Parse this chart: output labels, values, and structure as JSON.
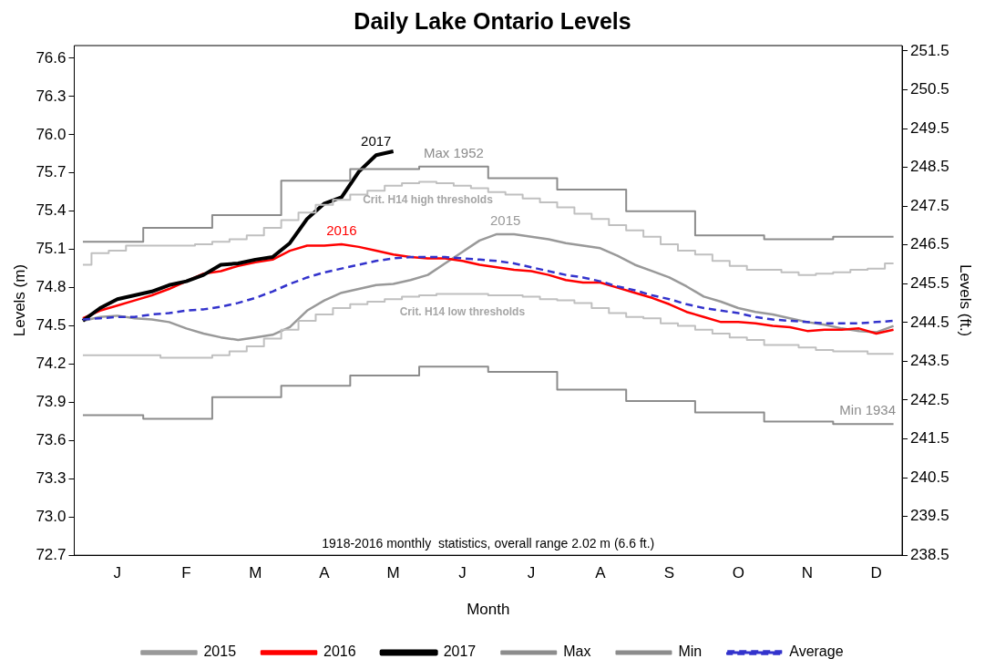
{
  "chart_data": {
    "type": "line",
    "title": "Daily Lake Ontario Levels",
    "xlabel": "Month",
    "ylabel": "Levels (m)",
    "y2label": "Levels (ft.)",
    "categories": [
      null,
      null,
      "J",
      null,
      null,
      null,
      "F",
      null,
      null,
      null,
      "M",
      null,
      null,
      null,
      "A",
      null,
      null,
      null,
      "M",
      null,
      null,
      null,
      "J",
      null,
      null,
      null,
      "J",
      null,
      null,
      null,
      "A",
      null,
      null,
      null,
      "S",
      null,
      null,
      null,
      "O",
      null,
      null,
      null,
      "N",
      null,
      null,
      null,
      "D",
      null
    ],
    "ylim": [
      72.7,
      76.7
    ],
    "yticks": [
      72.7,
      {
        "value": 73,
        "label": "73.0"
      },
      73.3,
      73.6,
      73.9,
      74.2,
      74.5,
      74.8,
      75.1,
      75.4,
      75.7,
      {
        "value": 76,
        "label": "76.0"
      },
      76.3,
      76.6
    ],
    "y2lim": [
      238.5,
      251.64
    ],
    "y2ticks": [
      238.5,
      239.5,
      240.5,
      241.5,
      242.5,
      243.5,
      244.5,
      245.5,
      246.5,
      247.5,
      248.5,
      249.5,
      250.5,
      251.5
    ],
    "grid": false,
    "legend": "bottom",
    "marker": "none",
    "series": [
      {
        "name": "2015",
        "color": "#999999",
        "values": [
          74.54,
          74.57,
          74.58,
          74.56,
          74.55,
          74.53,
          74.48,
          74.44,
          74.41,
          74.39,
          74.41,
          74.43,
          74.49,
          74.62,
          74.7,
          74.76,
          74.79,
          74.82,
          74.83,
          74.86,
          74.9,
          74.99,
          75.08,
          75.17,
          75.22,
          75.22,
          75.2,
          75.18,
          75.15,
          75.13,
          75.11,
          75.05,
          74.98,
          74.93,
          74.88,
          74.81,
          74.73,
          74.69,
          74.64,
          74.61,
          74.59,
          74.56,
          74.53,
          74.51,
          74.48,
          74.46,
          74.45,
          74.5
        ]
      },
      {
        "name": "2016",
        "color": "#ff0000",
        "values": [
          74.56,
          74.62,
          74.66,
          74.7,
          74.74,
          74.79,
          74.85,
          74.91,
          74.93,
          74.97,
          75.0,
          75.02,
          75.09,
          75.13,
          75.13,
          75.14,
          75.12,
          75.09,
          75.06,
          75.04,
          75.03,
          75.03,
          75.01,
          74.98,
          74.96,
          74.94,
          74.93,
          74.9,
          74.86,
          74.84,
          74.84,
          74.8,
          74.76,
          74.72,
          74.67,
          74.61,
          74.57,
          74.53,
          74.53,
          74.52,
          74.5,
          74.49,
          74.46,
          74.47,
          74.47,
          74.48,
          74.44,
          74.47
        ]
      },
      {
        "name": "2017",
        "color": "#000000",
        "values": [
          74.54,
          74.64,
          74.71,
          74.74,
          74.77,
          74.82,
          74.85,
          74.9,
          74.98,
          74.99,
          75.02,
          75.04,
          75.15,
          75.34,
          75.46,
          75.51,
          75.71,
          75.84,
          75.87,
          null,
          null,
          null,
          null,
          null,
          null,
          null,
          null,
          null,
          null,
          null,
          null,
          null,
          null,
          null,
          null,
          null,
          null,
          null,
          null,
          null,
          null,
          null,
          null,
          null,
          null,
          null,
          null,
          null
        ]
      },
      {
        "name": "Max",
        "type": "step",
        "color": "#8c8c8c",
        "values": [
          75.16,
          75.16,
          75.16,
          75.16,
          75.27,
          75.27,
          75.27,
          75.27,
          75.37,
          75.37,
          75.37,
          75.37,
          75.64,
          75.64,
          75.64,
          75.64,
          75.73,
          75.73,
          75.73,
          75.73,
          75.75,
          75.75,
          75.75,
          75.75,
          75.66,
          75.66,
          75.66,
          75.66,
          75.57,
          75.57,
          75.57,
          75.57,
          75.4,
          75.4,
          75.4,
          75.4,
          75.21,
          75.21,
          75.21,
          75.21,
          75.18,
          75.18,
          75.18,
          75.18,
          75.2,
          75.2,
          75.2,
          75.2
        ]
      },
      {
        "name": "Min",
        "type": "step",
        "color": "#8c8c8c",
        "values": [
          73.8,
          73.8,
          73.8,
          73.8,
          73.77,
          73.77,
          73.77,
          73.77,
          73.94,
          73.94,
          73.94,
          73.94,
          74.03,
          74.03,
          74.03,
          74.03,
          74.11,
          74.11,
          74.11,
          74.11,
          74.18,
          74.18,
          74.18,
          74.18,
          74.14,
          74.14,
          74.14,
          74.14,
          74.0,
          74.0,
          74.0,
          74.0,
          73.91,
          73.91,
          73.91,
          73.91,
          73.82,
          73.82,
          73.82,
          73.82,
          73.75,
          73.75,
          73.75,
          73.75,
          73.73,
          73.73,
          73.73,
          73.73
        ]
      },
      {
        "name": "Average",
        "color": "#3333cc",
        "line_style": "dashed",
        "values": [
          74.55,
          74.56,
          74.57,
          74.57,
          74.59,
          74.6,
          74.62,
          74.63,
          74.65,
          74.68,
          74.72,
          74.77,
          74.83,
          74.88,
          74.92,
          74.95,
          74.98,
          75.01,
          75.03,
          75.04,
          75.04,
          75.04,
          75.03,
          75.02,
          75.01,
          74.99,
          74.96,
          74.93,
          74.9,
          74.88,
          74.85,
          74.81,
          74.78,
          74.74,
          74.71,
          74.67,
          74.64,
          74.62,
          74.6,
          74.57,
          74.55,
          74.54,
          74.53,
          74.52,
          74.52,
          74.52,
          74.53,
          74.54
        ]
      },
      {
        "type": "step",
        "color": "#c0c0c0",
        "values": [
          74.98,
          75.07,
          75.09,
          75.13,
          75.13,
          75.13,
          75.13,
          75.14,
          75.16,
          75.18,
          75.21,
          75.27,
          75.33,
          75.39,
          75.45,
          75.49,
          75.53,
          75.56,
          75.6,
          75.62,
          75.63,
          75.62,
          75.6,
          75.58,
          75.55,
          75.53,
          75.5,
          75.47,
          75.43,
          75.38,
          75.34,
          75.29,
          75.25,
          75.2,
          75.14,
          75.09,
          75.06,
          75.01,
          74.97,
          74.94,
          74.94,
          74.92,
          74.9,
          74.91,
          74.92,
          74.94,
          74.95,
          74.99
        ]
      },
      {
        "type": "step",
        "color": "#c0c0c0",
        "values": [
          74.27,
          74.27,
          74.27,
          74.27,
          74.27,
          74.25,
          74.25,
          74.25,
          74.27,
          74.3,
          74.34,
          74.4,
          74.47,
          74.54,
          74.59,
          74.64,
          74.67,
          74.69,
          74.71,
          74.73,
          74.74,
          74.75,
          74.75,
          74.75,
          74.74,
          74.74,
          74.73,
          74.71,
          74.7,
          74.68,
          74.64,
          74.6,
          74.57,
          74.56,
          74.52,
          74.5,
          74.47,
          74.44,
          74.41,
          74.39,
          74.35,
          74.35,
          74.33,
          74.31,
          74.3,
          74.3,
          74.28,
          74.28
        ]
      }
    ],
    "annotations": [
      {
        "text": "2017",
        "y": 75.84
      },
      {
        "text": "2016",
        "y": 75.14
      },
      {
        "text": "2015",
        "y": 75.22
      },
      {
        "text": "Max 1952",
        "y": 75.75
      },
      {
        "text": "Crit. H14 high thresholds",
        "y": 75.63
      },
      {
        "text": "Crit. H14 low thresholds",
        "y": 74.75
      },
      {
        "text": "Min 1934",
        "y": 73.73
      },
      "1918-2016 monthly  statistics, overall range 2.02 m (6.6 ft.)"
    ]
  }
}
